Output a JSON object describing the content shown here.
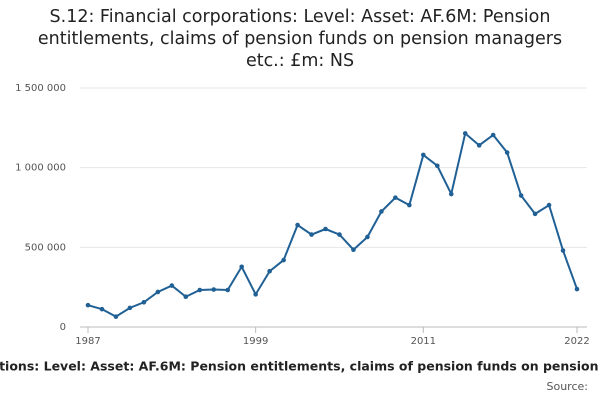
{
  "chart_data": {
    "type": "line",
    "title": "S.12: Financial corporations: Level: Asset: AF.6M: Pension entitlements, claims of pension funds on pension managers etc.: £m: NS",
    "source_label": "Source:",
    "x": [
      1987,
      1988,
      1989,
      1990,
      1991,
      1992,
      1993,
      1994,
      1995,
      1996,
      1997,
      1998,
      1999,
      2000,
      2001,
      2002,
      2003,
      2004,
      2005,
      2006,
      2007,
      2008,
      2009,
      2010,
      2011,
      2012,
      2013,
      2014,
      2015,
      2016,
      2017,
      2018,
      2019,
      2020,
      2021,
      2022
    ],
    "series": [
      {
        "name": "S.12: Financial corporations: Level: Asset: AF.6M: Pension entitlements, claims of pension funds on pension managers etc.: £m: NS",
        "color": "#206095",
        "values": [
          137000,
          112000,
          65000,
          120000,
          155000,
          220000,
          260000,
          190000,
          232000,
          235000,
          232000,
          378000,
          205000,
          350000,
          420000,
          640000,
          580000,
          615000,
          580000,
          485000,
          565000,
          725000,
          812000,
          765000,
          1080000,
          1012000,
          835000,
          1215000,
          1140000,
          1205000,
          1095000,
          825000,
          710000,
          765000,
          480000,
          238000
        ]
      }
    ],
    "xlim": [
      1987,
      2022
    ],
    "xticks": [
      1987,
      1999,
      2011,
      2022
    ],
    "ylim": [
      0,
      1500000
    ],
    "yticks": [
      0,
      {
        "value": 500000,
        "label": "500 000"
      },
      {
        "value": 1000000,
        "label": "1 000 000"
      },
      {
        "value": 1500000,
        "label": "1 500 000"
      }
    ],
    "grid": true
  }
}
